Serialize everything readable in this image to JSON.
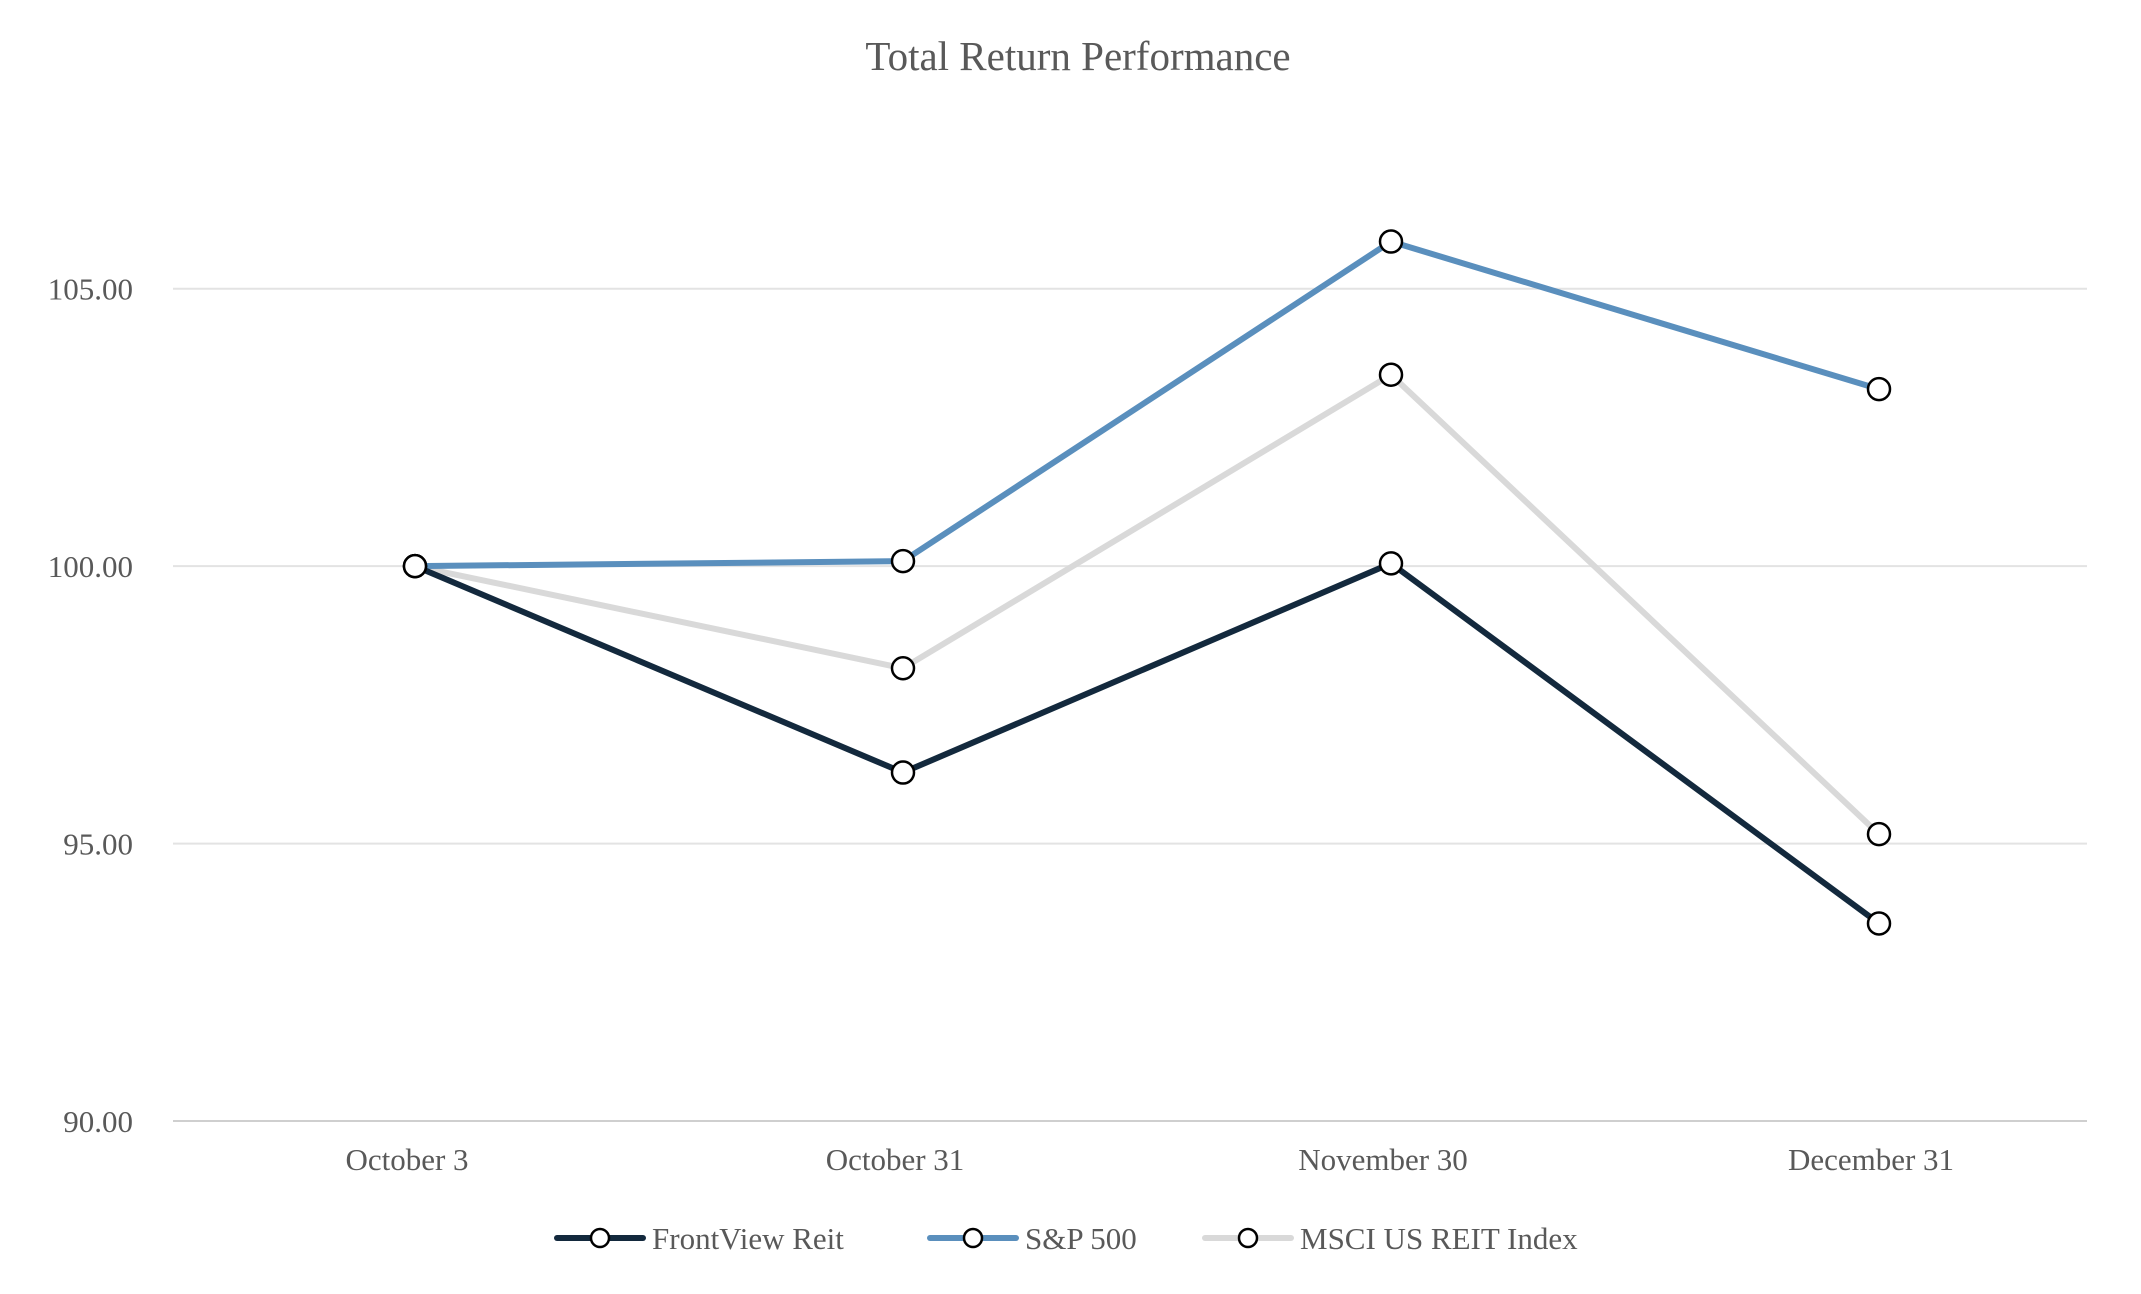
{
  "chart_data": {
    "type": "line",
    "title": "Total Return Performance",
    "xlabel": "",
    "ylabel": "",
    "categories": [
      "October 3",
      "October 31",
      "November 30",
      "December 31"
    ],
    "series": [
      {
        "name": "FrontView Reit",
        "color": "#13293d",
        "values": [
          100.0,
          96.28,
          100.05,
          93.56
        ]
      },
      {
        "name": "S&P 500",
        "color": "#5a8fbd",
        "values": [
          100.0,
          100.09,
          105.85,
          103.19
        ]
      },
      {
        "name": "MSCI US REIT Index",
        "color": "#d9d9d9",
        "values": [
          100.0,
          98.16,
          103.45,
          95.17
        ]
      }
    ],
    "ylim": [
      90,
      107.5
    ],
    "yticks": [
      90,
      95,
      100,
      105
    ],
    "ytick_labels": [
      "90.00",
      "95.00",
      "100.00",
      "105.00"
    ],
    "grid": true,
    "legend": "bottom-center",
    "marker": "open-circle"
  }
}
